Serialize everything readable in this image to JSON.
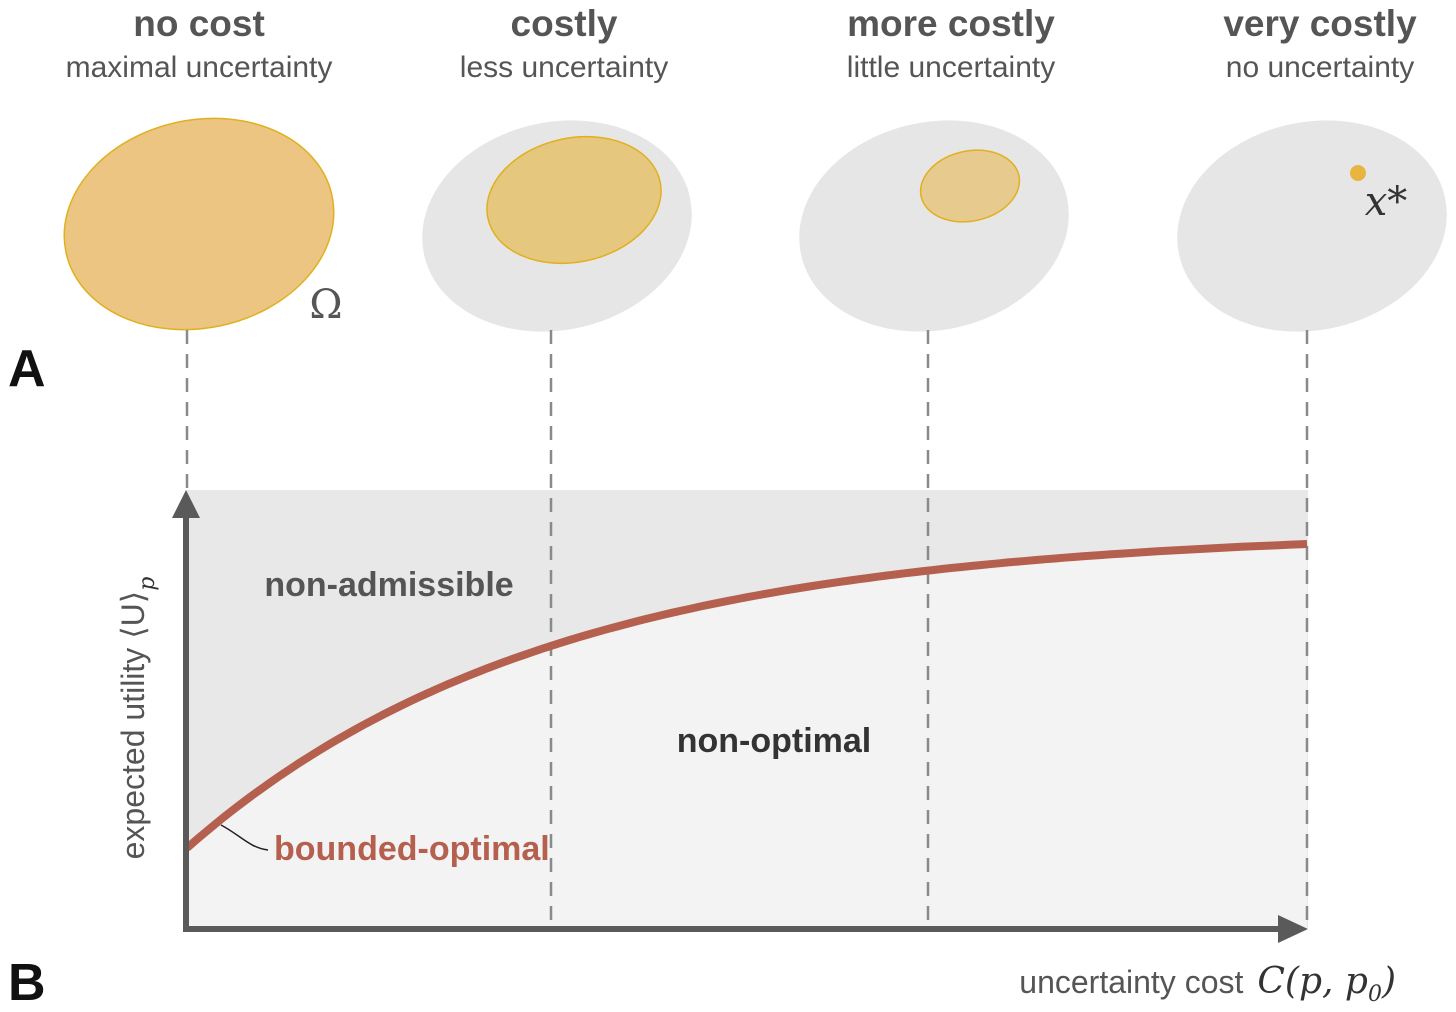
{
  "columns": [
    {
      "title": "no cost",
      "subtitle": "maximal uncertainty"
    },
    {
      "title": "costly",
      "subtitle": "less uncertainty"
    },
    {
      "title": "more costly",
      "subtitle": "little uncertainty"
    },
    {
      "title": "very costly",
      "subtitle": "no uncertainty"
    }
  ],
  "panel_a": {
    "letter": "A",
    "omega_label": "Ω",
    "optimum_label": "x*"
  },
  "panel_b": {
    "letter": "B",
    "y_axis_label": "expected utility ⟨U⟩",
    "y_axis_subscript": "p",
    "x_axis_label": "uncertainty cost",
    "x_axis_math": "C(p, p",
    "x_axis_math_sub": "0",
    "x_axis_math_close": ")",
    "region_upper": "non-admissible",
    "region_lower": "non-optimal",
    "curve_label": "bounded-optimal"
  },
  "colors": {
    "curve": "#b5604e",
    "set_fill": "#ebc581",
    "set_stroke": "#e0b020",
    "domain_fill": "#e6e6e6",
    "upper_region": "#e8e8e8",
    "lower_region": "#f3f3f3",
    "axis": "#5a5a5a",
    "dash": "#8a8a8a"
  }
}
